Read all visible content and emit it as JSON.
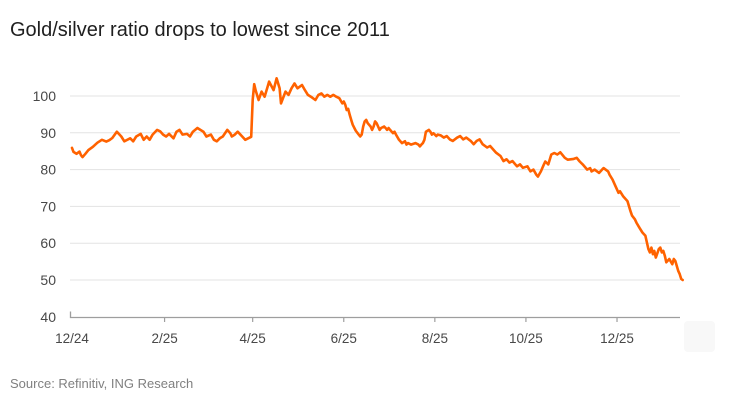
{
  "title": "Gold/silver ratio drops to lowest since 2011",
  "source": "Source: Refinitiv, ING Research",
  "colors": {
    "line": "#FF6200",
    "title_text": "#1f1f1f",
    "tick_text": "#484848",
    "source_text": "#808080",
    "gridline": "#e3e3e3",
    "axis": "#9e9e9e",
    "background": "#ffffff"
  },
  "chart_data": {
    "type": "line",
    "title": "Gold/silver ratio drops to lowest since 2011",
    "series_name": "Gold/silver ratio",
    "xlabel": "",
    "ylabel": "",
    "grid": "horizontal gridlines at each y tick, no vertical grid",
    "legend": "none",
    "ylim": [
      40,
      107
    ],
    "y_ticks": [
      100,
      90,
      80,
      70,
      60,
      50,
      40
    ],
    "x_ticks": [
      {
        "label": "12/24",
        "d": 0
      },
      {
        "label": "2/25",
        "d": 62
      },
      {
        "label": "4/25",
        "d": 121
      },
      {
        "label": "6/25",
        "d": 182
      },
      {
        "label": "8/25",
        "d": 243
      },
      {
        "label": "10/25",
        "d": 304
      },
      {
        "label": "12/25",
        "d": 365
      }
    ],
    "x_axis_note": "d = days since 12/24 tick; axis drawn from d=0 to d=407",
    "points": [
      [
        0,
        85.9
      ],
      [
        1,
        84.8
      ],
      [
        3,
        84.3
      ],
      [
        5,
        84.9
      ],
      [
        6,
        83.9
      ],
      [
        7,
        83.4
      ],
      [
        9,
        84.3
      ],
      [
        11,
        85.3
      ],
      [
        14,
        86.2
      ],
      [
        17,
        87.3
      ],
      [
        20,
        88.1
      ],
      [
        23,
        87.6
      ],
      [
        25,
        88.0
      ],
      [
        27,
        88.6
      ],
      [
        30,
        90.3
      ],
      [
        33,
        89.0
      ],
      [
        35,
        87.7
      ],
      [
        39,
        88.5
      ],
      [
        41,
        87.7
      ],
      [
        43,
        89.0
      ],
      [
        46,
        89.7
      ],
      [
        48,
        88.1
      ],
      [
        50,
        89.0
      ],
      [
        52,
        88.1
      ],
      [
        54,
        89.5
      ],
      [
        57,
        90.8
      ],
      [
        59,
        90.4
      ],
      [
        61,
        89.5
      ],
      [
        63,
        89.0
      ],
      [
        65,
        89.7
      ],
      [
        68,
        88.5
      ],
      [
        70,
        90.3
      ],
      [
        72,
        90.8
      ],
      [
        74,
        89.5
      ],
      [
        77,
        89.7
      ],
      [
        79,
        89.0
      ],
      [
        81,
        90.3
      ],
      [
        84,
        91.3
      ],
      [
        86,
        90.8
      ],
      [
        88,
        90.3
      ],
      [
        90,
        89.0
      ],
      [
        93,
        89.5
      ],
      [
        95,
        88.1
      ],
      [
        97,
        87.7
      ],
      [
        99,
        88.5
      ],
      [
        101,
        89.0
      ],
      [
        104,
        90.8
      ],
      [
        106,
        89.9
      ],
      [
        107,
        89.0
      ],
      [
        109,
        89.5
      ],
      [
        111,
        90.3
      ],
      [
        114,
        89.0
      ],
      [
        116,
        88.1
      ],
      [
        118,
        88.5
      ],
      [
        120,
        88.9
      ],
      [
        121,
        99.0
      ],
      [
        122,
        103.2
      ],
      [
        123,
        101.5
      ],
      [
        125,
        98.9
      ],
      [
        127,
        101.2
      ],
      [
        129,
        99.8
      ],
      [
        131,
        102.5
      ],
      [
        132,
        103.9
      ],
      [
        135,
        101.6
      ],
      [
        137,
        104.8
      ],
      [
        139,
        102.1
      ],
      [
        140,
        98.0
      ],
      [
        143,
        101.2
      ],
      [
        145,
        100.3
      ],
      [
        147,
        102.1
      ],
      [
        149,
        103.4
      ],
      [
        151,
        102.1
      ],
      [
        154,
        103.0
      ],
      [
        156,
        101.6
      ],
      [
        158,
        100.3
      ],
      [
        160,
        99.8
      ],
      [
        163,
        98.9
      ],
      [
        165,
        100.3
      ],
      [
        167,
        100.7
      ],
      [
        169,
        99.8
      ],
      [
        171,
        100.3
      ],
      [
        173,
        99.8
      ],
      [
        175,
        100.3
      ],
      [
        177,
        99.8
      ],
      [
        179,
        99.4
      ],
      [
        181,
        98.0
      ],
      [
        182,
        98.5
      ],
      [
        183,
        97.6
      ],
      [
        184,
        96.2
      ],
      [
        185,
        96.5
      ],
      [
        186,
        94.9
      ],
      [
        187,
        93.5
      ],
      [
        188,
        92.2
      ],
      [
        190,
        90.6
      ],
      [
        192,
        89.5
      ],
      [
        193,
        89.0
      ],
      [
        194,
        89.5
      ],
      [
        195,
        91.7
      ],
      [
        196,
        93.1
      ],
      [
        197,
        93.5
      ],
      [
        198,
        92.6
      ],
      [
        200,
        91.7
      ],
      [
        201,
        90.8
      ],
      [
        202,
        91.7
      ],
      [
        203,
        93.1
      ],
      [
        204,
        92.6
      ],
      [
        205,
        91.7
      ],
      [
        206,
        90.8
      ],
      [
        207,
        91.3
      ],
      [
        209,
        91.7
      ],
      [
        210,
        91.3
      ],
      [
        211,
        90.8
      ],
      [
        212,
        91.3
      ],
      [
        213,
        90.8
      ],
      [
        215,
        89.9
      ],
      [
        216,
        90.3
      ],
      [
        217,
        89.5
      ],
      [
        219,
        88.1
      ],
      [
        221,
        87.2
      ],
      [
        223,
        87.7
      ],
      [
        224,
        86.8
      ],
      [
        225,
        87.2
      ],
      [
        227,
        86.8
      ],
      [
        230,
        87.2
      ],
      [
        232,
        86.8
      ],
      [
        233,
        86.3
      ],
      [
        234,
        86.8
      ],
      [
        235,
        87.2
      ],
      [
        236,
        88.1
      ],
      [
        237,
        90.3
      ],
      [
        239,
        90.8
      ],
      [
        240,
        90.3
      ],
      [
        241,
        89.5
      ],
      [
        242,
        89.9
      ],
      [
        243,
        89.5
      ],
      [
        244,
        89.1
      ],
      [
        245,
        89.5
      ],
      [
        247,
        89.3
      ],
      [
        249,
        88.7
      ],
      [
        251,
        89.1
      ],
      [
        253,
        88.2
      ],
      [
        255,
        87.8
      ],
      [
        258,
        88.7
      ],
      [
        260,
        89.1
      ],
      [
        262,
        88.2
      ],
      [
        264,
        88.7
      ],
      [
        267,
        87.8
      ],
      [
        269,
        86.9
      ],
      [
        271,
        87.8
      ],
      [
        273,
        88.2
      ],
      [
        275,
        86.9
      ],
      [
        278,
        86.0
      ],
      [
        280,
        86.4
      ],
      [
        282,
        85.5
      ],
      [
        284,
        84.6
      ],
      [
        287,
        83.7
      ],
      [
        289,
        82.3
      ],
      [
        291,
        82.8
      ],
      [
        293,
        81.9
      ],
      [
        295,
        82.3
      ],
      [
        298,
        80.9
      ],
      [
        300,
        81.4
      ],
      [
        302,
        80.5
      ],
      [
        305,
        80.9
      ],
      [
        307,
        79.5
      ],
      [
        309,
        80.0
      ],
      [
        311,
        78.6
      ],
      [
        312,
        78.1
      ],
      [
        314,
        79.5
      ],
      [
        316,
        81.4
      ],
      [
        317,
        82.2
      ],
      [
        319,
        81.4
      ],
      [
        321,
        84.1
      ],
      [
        323,
        84.5
      ],
      [
        325,
        84.1
      ],
      [
        327,
        84.7
      ],
      [
        330,
        83.2
      ],
      [
        332,
        82.7
      ],
      [
        336,
        82.9
      ],
      [
        338,
        83.2
      ],
      [
        340,
        82.2
      ],
      [
        342,
        81.4
      ],
      [
        345,
        80.0
      ],
      [
        347,
        80.4
      ],
      [
        348,
        79.5
      ],
      [
        350,
        80.0
      ],
      [
        353,
        79.1
      ],
      [
        355,
        80.0
      ],
      [
        356,
        80.4
      ],
      [
        359,
        79.5
      ],
      [
        360,
        78.6
      ],
      [
        362,
        77.3
      ],
      [
        364,
        75.5
      ],
      [
        366,
        73.7
      ],
      [
        367,
        74.1
      ],
      [
        369,
        72.8
      ],
      [
        372,
        71.4
      ],
      [
        374,
        68.7
      ],
      [
        375,
        67.5
      ],
      [
        377,
        66.5
      ],
      [
        378,
        65.6
      ],
      [
        380,
        64.2
      ],
      [
        382,
        62.9
      ],
      [
        384,
        62.0
      ],
      [
        385,
        60.2
      ],
      [
        386,
        58.4
      ],
      [
        387,
        57.5
      ],
      [
        388,
        58.8
      ],
      [
        389,
        57.0
      ],
      [
        390,
        57.9
      ],
      [
        391,
        56.1
      ],
      [
        393,
        58.4
      ],
      [
        394,
        58.8
      ],
      [
        395,
        57.5
      ],
      [
        396,
        57.9
      ],
      [
        397,
        56.6
      ],
      [
        398,
        54.8
      ],
      [
        400,
        55.7
      ],
      [
        402,
        54.3
      ],
      [
        403,
        55.7
      ],
      [
        404,
        55.2
      ],
      [
        405,
        53.9
      ],
      [
        406,
        52.5
      ],
      [
        407,
        51.6
      ],
      [
        408,
        50.3
      ],
      [
        409,
        50.0
      ]
    ]
  }
}
